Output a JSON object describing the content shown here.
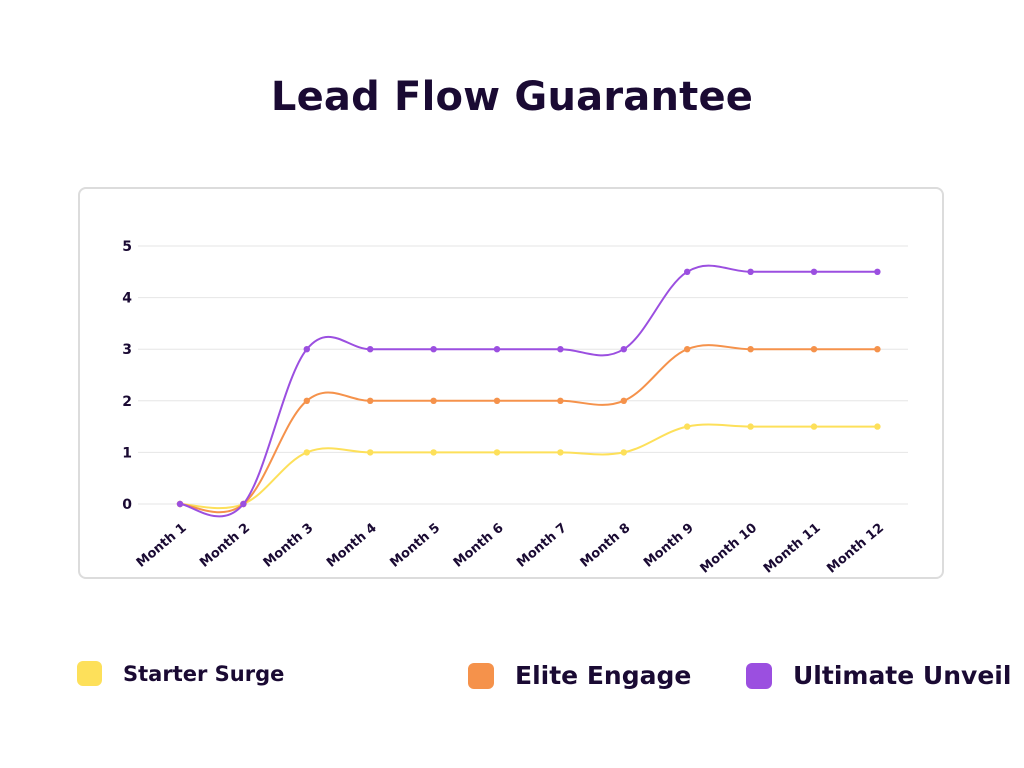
{
  "page": {
    "title": "Lead Flow Guarantee"
  },
  "colors": {
    "background": "#ffffff",
    "text": "#1a0a33",
    "grid": "#e6e6e6"
  },
  "legend": [
    {
      "label": "Starter Surge",
      "color": "#fde05a"
    },
    {
      "label": "Elite Engage",
      "color": "#f5924b"
    },
    {
      "label": "Ultimate Unveil",
      "color": "#9b4fe0"
    }
  ],
  "chart_data": {
    "type": "line",
    "title": "Lead Flow Guarantee",
    "xlabel": "",
    "ylabel": "",
    "categories": [
      "Month 1",
      "Month 2",
      "Month 3",
      "Month 4",
      "Month 5",
      "Month 6",
      "Month 7",
      "Month 8",
      "Month 9",
      "Month 10",
      "Month 11",
      "Month 12"
    ],
    "ylim": [
      0,
      5
    ],
    "yticks": [
      0,
      1,
      2,
      3,
      4,
      5
    ],
    "grid": true,
    "legend_position": "bottom",
    "series": [
      {
        "name": "Starter Surge",
        "color": "#fde05a",
        "values": [
          0,
          0,
          1,
          1,
          1,
          1,
          1,
          1,
          1.5,
          1.5,
          1.5,
          1.5
        ]
      },
      {
        "name": "Elite Engage",
        "color": "#f5924b",
        "values": [
          0,
          0,
          2,
          2,
          2,
          2,
          2,
          2,
          3,
          3,
          3,
          3
        ]
      },
      {
        "name": "Ultimate Unveil",
        "color": "#9b4fe0",
        "values": [
          0,
          0,
          3,
          3,
          3,
          3,
          3,
          3,
          4.5,
          4.5,
          4.5,
          4.5
        ]
      }
    ]
  }
}
